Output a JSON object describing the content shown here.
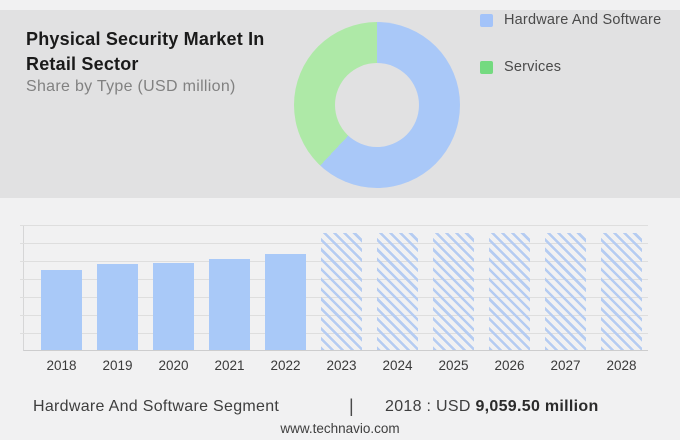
{
  "header": {
    "title_line1": "Physical Security Market In",
    "title_line2": "Retail Sector",
    "subtitle": "Share by Type (USD million)"
  },
  "chart_data": [
    {
      "type": "pie",
      "subtype": "donut",
      "title": "Share by Type (USD million)",
      "legend_position": "right",
      "slices": [
        {
          "label": "Hardware And Software",
          "share_pct": 62,
          "donut_color": "#a9c8f8",
          "legend_swatch_color": "#a3c3f9"
        },
        {
          "label": "Services",
          "share_pct": 38,
          "donut_color": "#aee9a7",
          "legend_swatch_color": "#74da80"
        }
      ]
    },
    {
      "type": "bar",
      "categories": [
        "2018",
        "2019",
        "2020",
        "2021",
        "2022",
        "2023",
        "2024",
        "2025",
        "2026",
        "2027",
        "2028"
      ],
      "values_usd_million": [
        9059.5,
        9650,
        9850,
        10300,
        10850,
        null,
        null,
        null,
        null,
        null,
        null
      ],
      "hatched": [
        false,
        false,
        false,
        false,
        false,
        true,
        true,
        true,
        true,
        true,
        true
      ],
      "forecast_display_value": 13200,
      "ylim": [
        0,
        14200
      ],
      "gridline_count": 7,
      "grid": true,
      "bar_color": "#a9c9f8",
      "hatch_color": "#b5ccf2",
      "xlabel": "",
      "ylabel": ""
    }
  ],
  "footer": {
    "segment_label": "Hardware And Software Segment",
    "divider": "|",
    "stat_prefix": "2018 : USD ",
    "stat_value": "9,059.50 million",
    "website": "www.technavio.com"
  },
  "colors": {
    "page_background": "#f1f1f2",
    "panel_background": "#e1e1e2",
    "title_text": "#1a1a1a",
    "subtitle_text": "#818181",
    "bar_blue": "#a9c9f8",
    "donut_green": "#aee9a7",
    "legend_green": "#74da80",
    "gridline": "#dedede"
  }
}
